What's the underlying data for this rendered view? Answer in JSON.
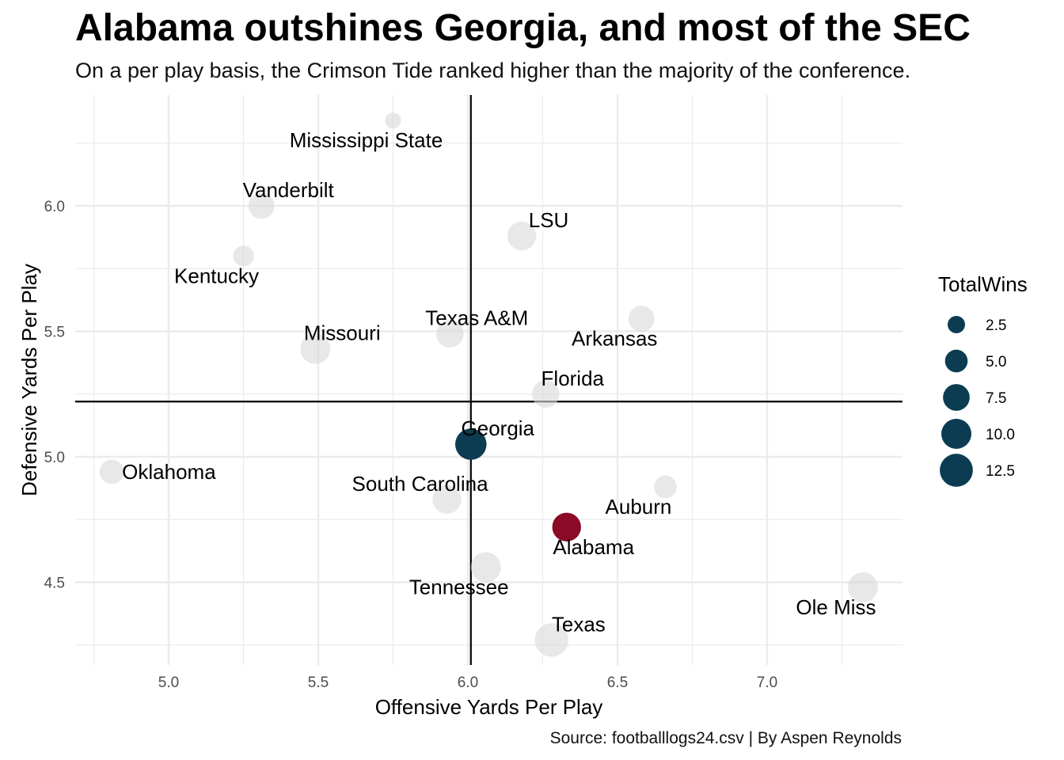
{
  "title": "Alabama outshines Georgia, and most of the SEC",
  "subtitle": "On a per play basis, the Crimson Tide ranked higher than the majority of the conference.",
  "caption": "Source: footballlogs24.csv | By Aspen Reynolds",
  "colors": {
    "highlight_alabama": "#8B0A25",
    "highlight_georgia": "#0B3C52",
    "other_teams": "#D9D9D9",
    "reference_lines": "#000000",
    "gridlines": "#EBEBEB"
  },
  "chart_data": {
    "type": "scatter",
    "xlabel": "Offensive Yards Per Play",
    "ylabel": "Defensive Yards Per Play",
    "xlim": [
      4.68,
      7.45
    ],
    "ylim": [
      4.2,
      6.45
    ],
    "x_ticks": [
      5.0,
      5.5,
      6.0,
      6.5,
      7.0
    ],
    "x_tick_labels": [
      "5.0",
      "5.5",
      "6.0",
      "6.5",
      "7.0"
    ],
    "y_ticks": [
      4.5,
      5.0,
      5.5,
      6.0
    ],
    "y_tick_labels": [
      "4.5",
      "5.0",
      "5.5",
      "6.0"
    ],
    "grid": true,
    "reference_lines": {
      "vline_x": 6.01,
      "hline_y": 5.22
    },
    "size_legend": {
      "title": "TotalWins",
      "position": "right",
      "values": [
        2.5,
        5.0,
        7.5,
        10.0,
        12.5
      ],
      "labels": [
        "2.5",
        "5.0",
        "7.5",
        "10.0",
        "12.5"
      ]
    },
    "points": [
      {
        "team": "Mississippi State",
        "x": 5.75,
        "y": 6.34,
        "wins": 2,
        "label_pos": "below-left"
      },
      {
        "team": "Vanderbilt",
        "x": 5.31,
        "y": 6.0,
        "wins": 7,
        "label_pos": "above-right"
      },
      {
        "team": "Kentucky",
        "x": 5.25,
        "y": 5.8,
        "wins": 4,
        "label_pos": "below-left"
      },
      {
        "team": "LSU",
        "x": 6.18,
        "y": 5.88,
        "wins": 9,
        "label_pos": "above-right"
      },
      {
        "team": "Missouri",
        "x": 5.49,
        "y": 5.43,
        "wins": 10,
        "label_pos": "above-right"
      },
      {
        "team": "Texas A&M",
        "x": 5.94,
        "y": 5.49,
        "wins": 8,
        "label_pos": "above-right"
      },
      {
        "team": "Arkansas",
        "x": 6.58,
        "y": 5.55,
        "wins": 7,
        "label_pos": "below-left"
      },
      {
        "team": "Florida",
        "x": 6.26,
        "y": 5.25,
        "wins": 8,
        "label_pos": "above-right"
      },
      {
        "team": "Georgia",
        "x": 6.01,
        "y": 5.05,
        "wins": 11,
        "label_pos": "above-right"
      },
      {
        "team": "Oklahoma",
        "x": 4.81,
        "y": 4.94,
        "wins": 6,
        "label_pos": "right"
      },
      {
        "team": "South Carolina",
        "x": 5.93,
        "y": 4.83,
        "wins": 9,
        "label_pos": "above-left"
      },
      {
        "team": "Auburn",
        "x": 6.66,
        "y": 4.88,
        "wins": 5,
        "label_pos": "below-left"
      },
      {
        "team": "Alabama",
        "x": 6.33,
        "y": 4.72,
        "wins": 9,
        "label_pos": "below-right"
      },
      {
        "team": "Tennessee",
        "x": 6.06,
        "y": 4.56,
        "wins": 10,
        "label_pos": "below-left"
      },
      {
        "team": "Ole Miss",
        "x": 7.32,
        "y": 4.48,
        "wins": 10,
        "label_pos": "below-left"
      },
      {
        "team": "Texas",
        "x": 6.28,
        "y": 4.27,
        "wins": 13,
        "label_pos": "above-right"
      }
    ]
  }
}
